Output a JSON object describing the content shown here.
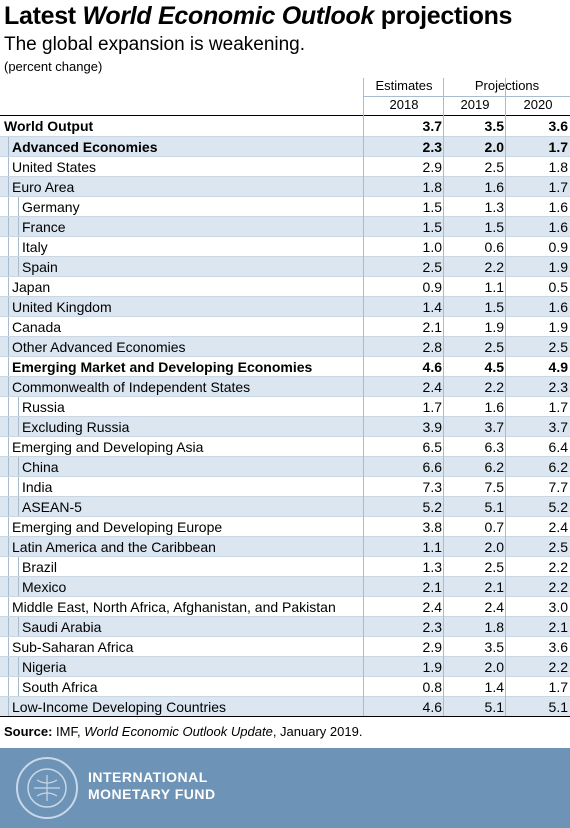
{
  "header": {
    "title": {
      "prefix": "Latest",
      "italic": "World Economic Outlook",
      "suffix": "projections"
    },
    "subtitle": "The global expansion is weakening.",
    "note": "(percent change)"
  },
  "table": {
    "groups": [
      "Estimates",
      "Projections"
    ],
    "years": [
      "2018",
      "2019",
      "2020"
    ],
    "rows": [
      {
        "label": "World Output",
        "level": 0,
        "bold": true,
        "values": [
          "3.7",
          "3.5",
          "3.6"
        ]
      },
      {
        "label": "Advanced Economies",
        "level": 1,
        "bold": true,
        "values": [
          "2.3",
          "2.0",
          "1.7"
        ]
      },
      {
        "label": "United States",
        "level": 1,
        "values": [
          "2.9",
          "2.5",
          "1.8"
        ]
      },
      {
        "label": "Euro Area",
        "level": 1,
        "values": [
          "1.8",
          "1.6",
          "1.7"
        ]
      },
      {
        "label": "Germany",
        "level": 2,
        "values": [
          "1.5",
          "1.3",
          "1.6"
        ]
      },
      {
        "label": "France",
        "level": 2,
        "values": [
          "1.5",
          "1.5",
          "1.6"
        ]
      },
      {
        "label": "Italy",
        "level": 2,
        "values": [
          "1.0",
          "0.6",
          "0.9"
        ]
      },
      {
        "label": "Spain",
        "level": 2,
        "values": [
          "2.5",
          "2.2",
          "1.9"
        ]
      },
      {
        "label": "Japan",
        "level": 1,
        "values": [
          "0.9",
          "1.1",
          "0.5"
        ]
      },
      {
        "label": "United Kingdom",
        "level": 1,
        "values": [
          "1.4",
          "1.5",
          "1.6"
        ]
      },
      {
        "label": "Canada",
        "level": 1,
        "values": [
          "2.1",
          "1.9",
          "1.9"
        ]
      },
      {
        "label": "Other Advanced Economies",
        "level": 1,
        "values": [
          "2.8",
          "2.5",
          "2.5"
        ]
      },
      {
        "label": "Emerging Market and Developing Economies",
        "level": 1,
        "bold": true,
        "values": [
          "4.6",
          "4.5",
          "4.9"
        ]
      },
      {
        "label": "Commonwealth of Independent States",
        "level": 1,
        "values": [
          "2.4",
          "2.2",
          "2.3"
        ]
      },
      {
        "label": "Russia",
        "level": 2,
        "values": [
          "1.7",
          "1.6",
          "1.7"
        ]
      },
      {
        "label": "Excluding Russia",
        "level": 2,
        "values": [
          "3.9",
          "3.7",
          "3.7"
        ]
      },
      {
        "label": "Emerging and Developing Asia",
        "level": 1,
        "values": [
          "6.5",
          "6.3",
          "6.4"
        ]
      },
      {
        "label": "China",
        "level": 2,
        "values": [
          "6.6",
          "6.2",
          "6.2"
        ]
      },
      {
        "label": "India",
        "level": 2,
        "values": [
          "7.3",
          "7.5",
          "7.7"
        ]
      },
      {
        "label": "ASEAN-5",
        "level": 2,
        "values": [
          "5.2",
          "5.1",
          "5.2"
        ]
      },
      {
        "label": "Emerging and Developing Europe",
        "level": 1,
        "values": [
          "3.8",
          "0.7",
          "2.4"
        ]
      },
      {
        "label": "Latin America and the Caribbean",
        "level": 1,
        "values": [
          "1.1",
          "2.0",
          "2.5"
        ]
      },
      {
        "label": "Brazil",
        "level": 2,
        "values": [
          "1.3",
          "2.5",
          "2.2"
        ]
      },
      {
        "label": "Mexico",
        "level": 2,
        "values": [
          "2.1",
          "2.1",
          "2.2"
        ]
      },
      {
        "label": "Middle East, North Africa, Afghanistan, and Pakistan",
        "level": 1,
        "values": [
          "2.4",
          "2.4",
          "3.0"
        ]
      },
      {
        "label": "Saudi Arabia",
        "level": 2,
        "values": [
          "2.3",
          "1.8",
          "2.1"
        ]
      },
      {
        "label": "Sub-Saharan Africa",
        "level": 1,
        "values": [
          "2.9",
          "3.5",
          "3.6"
        ]
      },
      {
        "label": "Nigeria",
        "level": 2,
        "values": [
          "1.9",
          "2.0",
          "2.2"
        ]
      },
      {
        "label": "South Africa",
        "level": 2,
        "values": [
          "0.8",
          "1.4",
          "1.7"
        ]
      },
      {
        "label": "Low-Income Developing Countries",
        "level": 1,
        "values": [
          "4.6",
          "5.1",
          "5.1"
        ]
      }
    ]
  },
  "source": {
    "label": "Source:",
    "prefix": "IMF,",
    "italic": "World Economic Outlook Update",
    "suffix": ", January 2019."
  },
  "footer": {
    "line1": "INTERNATIONAL",
    "line2": "MONETARY FUND"
  }
}
